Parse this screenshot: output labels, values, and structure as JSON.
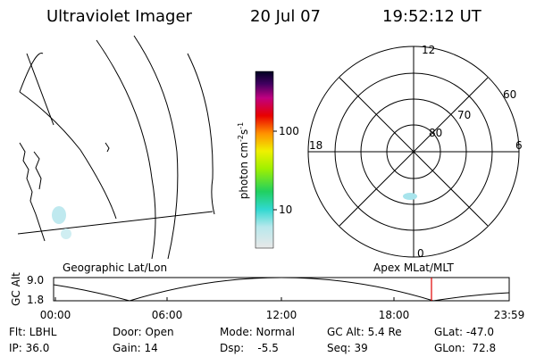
{
  "header": {
    "title": "Ultraviolet Imager",
    "date": "20 Jul 07",
    "time": "19:52:12 UT"
  },
  "colorbar": {
    "label_parts": [
      "photon cm",
      "-2",
      "s",
      "-1"
    ],
    "ticks": [
      "100",
      "10"
    ]
  },
  "polar": {
    "mlt_labels": {
      "top": "12",
      "left": "18",
      "right": "6",
      "bottom": "0"
    },
    "lat_labels": [
      "60",
      "70",
      "80"
    ]
  },
  "timeline": {
    "left_title": "Geographic Lat/Lon",
    "right_title": "Apex MLat/MLT",
    "axis_label": "GC Alt",
    "y_labels": [
      "9.0",
      "1.8"
    ],
    "x_labels": [
      "00:00",
      "06:00",
      "12:00",
      "18:00",
      "23:59"
    ]
  },
  "footer": {
    "rows": [
      [
        "Flt: LBHL",
        "Door: Open",
        "Mode: Normal",
        "GC Alt: 5.4 Re",
        "GLat: -47.0"
      ],
      [
        "IP: 36.0",
        "Gain: 14",
        "Dsp:    -5.5",
        "Seq: 39",
        "GLon:  72.8"
      ]
    ]
  }
}
